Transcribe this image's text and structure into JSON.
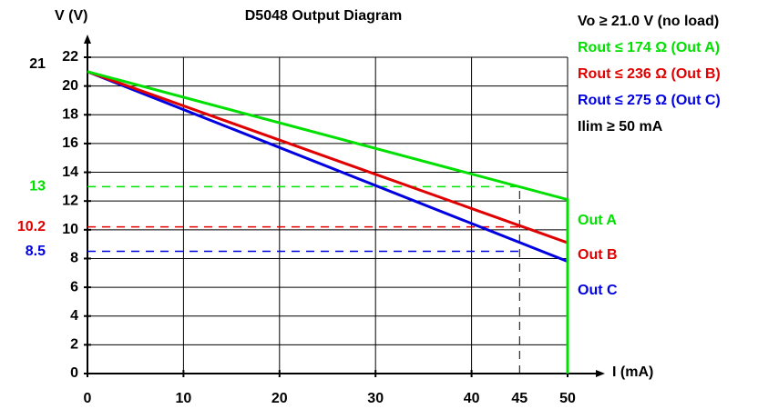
{
  "chart_data": {
    "type": "line",
    "title": "D5048 Output Diagram",
    "x_label": "I (mA)",
    "y_label": "V (V)",
    "x": [
      0,
      50,
      50
    ],
    "series": [
      {
        "name": "Out A",
        "color": "#00e000",
        "values": [
          21,
          12.1,
          0
        ]
      },
      {
        "name": "Out B",
        "color": "#e00000",
        "values": [
          21,
          9.1,
          0
        ]
      },
      {
        "name": "Out C",
        "color": "#0000e0",
        "values": [
          21,
          7.8,
          0
        ]
      }
    ],
    "xlim": [
      0,
      50
    ],
    "ylim": [
      0,
      22
    ],
    "xticks": [
      0,
      10,
      20,
      30,
      40,
      50
    ],
    "yticks": [
      0,
      2,
      4,
      6,
      8,
      10,
      12,
      14,
      16,
      18,
      20,
      22
    ],
    "grid": true,
    "y_marks": [
      {
        "value": 21,
        "color": "#000000",
        "dashed": false
      },
      {
        "value": 13,
        "color": "#00e000",
        "dashed": true
      },
      {
        "value": 10.2,
        "color": "#e00000",
        "dashed": true
      },
      {
        "value": 8.5,
        "color": "#0000e0",
        "dashed": true
      }
    ],
    "x_marker": 45,
    "annotations": [
      {
        "text": "Vo ≥ 21.0 V (no load)",
        "color": "#000000"
      },
      {
        "text": "Rout ≤ 174 Ω (Out A)",
        "color": "#00e000"
      },
      {
        "text": "Rout ≤ 236 Ω (Out B)",
        "color": "#e00000"
      },
      {
        "text": "Rout ≤ 275 Ω (Out C)",
        "color": "#0000e0"
      },
      {
        "text": "Ilim ≥ 50 mA",
        "color": "#000000"
      }
    ]
  }
}
